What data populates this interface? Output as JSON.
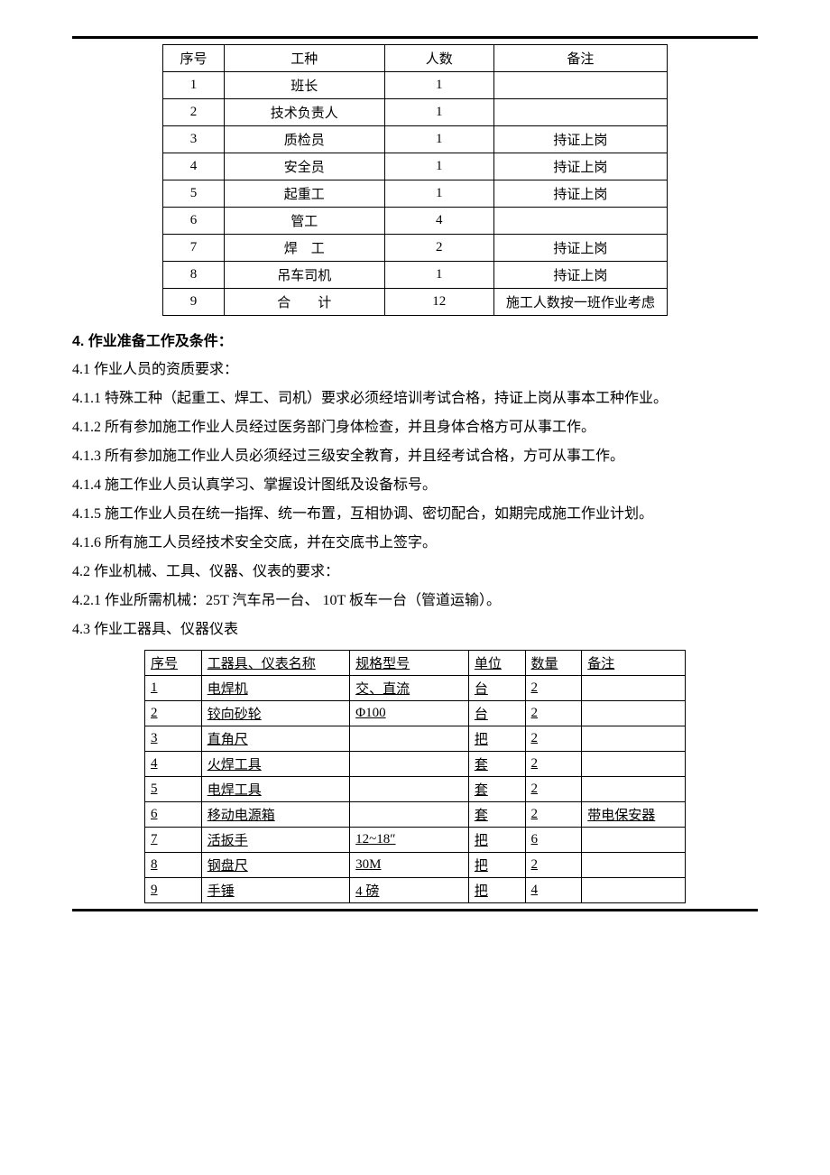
{
  "personnel_table": {
    "headers": {
      "seq": "序号",
      "job": "工种",
      "num": "人数",
      "note": "备注"
    },
    "rows": [
      {
        "seq": "1",
        "job": "班长",
        "num": "1",
        "note": ""
      },
      {
        "seq": "2",
        "job": "技术负责人",
        "num": "1",
        "note": ""
      },
      {
        "seq": "3",
        "job": "质检员",
        "num": "1",
        "note": "持证上岗"
      },
      {
        "seq": "4",
        "job": "安全员",
        "num": "1",
        "note": "持证上岗"
      },
      {
        "seq": "5",
        "job": "起重工",
        "num": "1",
        "note": "持证上岗"
      },
      {
        "seq": "6",
        "job": "管工",
        "num": "4",
        "note": ""
      },
      {
        "seq": "7",
        "job": "焊　工",
        "num": "2",
        "note": "持证上岗"
      },
      {
        "seq": "8",
        "job": "吊车司机",
        "num": "1",
        "note": "持证上岗"
      },
      {
        "seq": "9",
        "job": "合　　计",
        "num": "12",
        "note": "施工人数按一班作业考虑"
      }
    ]
  },
  "section4": {
    "title": "4. 作业准备工作及条件：",
    "items": {
      "s4_1": "4.1 作业人员的资质要求：",
      "s4_1_1": "4.1.1 特殊工种（起重工、焊工、司机）要求必须经培训考试合格，持证上岗从事本工种作业。",
      "s4_1_2": "4.1.2 所有参加施工作业人员经过医务部门身体检查，并且身体合格方可从事工作。",
      "s4_1_3": "4.1.3 所有参加施工作业人员必须经过三级安全教育，并且经考试合格，方可从事工作。",
      "s4_1_4": "4.1.4 施工作业人员认真学习、掌握设计图纸及设备标号。",
      "s4_1_5": "4.1.5 施工作业人员在统一指挥、统一布置，互相协调、密切配合，如期完成施工作业计划。",
      "s4_1_6": "4.1.6 所有施工人员经技术安全交底，并在交底书上签字。",
      "s4_2": "4.2 作业机械、工具、仪器、仪表的要求：",
      "s4_2_1": "4.2.1 作业所需机械：25T 汽车吊一台、 10T 板车一台（管道运输）。",
      "s4_3": "4.3 作业工器具、仪器仪表"
    }
  },
  "tools_table": {
    "headers": {
      "seq": "序号",
      "name": "工器具、仪表名称",
      "spec": "规格型号",
      "unit": "单位",
      "qty": "数量",
      "note": "备注"
    },
    "rows": [
      {
        "seq": "1",
        "name": "电焊机",
        "spec": "交、直流",
        "unit": "台",
        "qty": "2",
        "note": ""
      },
      {
        "seq": "2",
        "name": "铰向砂轮",
        "spec": "Φ100",
        "unit": "台",
        "qty": "2",
        "note": ""
      },
      {
        "seq": "3",
        "name": "直角尺",
        "spec": "",
        "unit": "把",
        "qty": "2",
        "note": ""
      },
      {
        "seq": "4",
        "name": "火焊工具",
        "spec": "",
        "unit": "套",
        "qty": "2",
        "note": ""
      },
      {
        "seq": "5",
        "name": "电焊工具",
        "spec": "",
        "unit": "套",
        "qty": "2",
        "note": ""
      },
      {
        "seq": "6",
        "name": "移动电源箱",
        "spec": "",
        "unit": "套",
        "qty": "2",
        "note": "带电保安器"
      },
      {
        "seq": "7",
        "name": "活扳手",
        "spec": "12~18″",
        "unit": "把",
        "qty": "6",
        "note": ""
      },
      {
        "seq": "8",
        "name": "钢盘尺",
        "spec": "30M",
        "unit": "把",
        "qty": "2",
        "note": ""
      },
      {
        "seq": "9",
        "name": "手锤",
        "spec": "4 磅",
        "unit": "把",
        "qty": "4",
        "note": ""
      }
    ]
  }
}
